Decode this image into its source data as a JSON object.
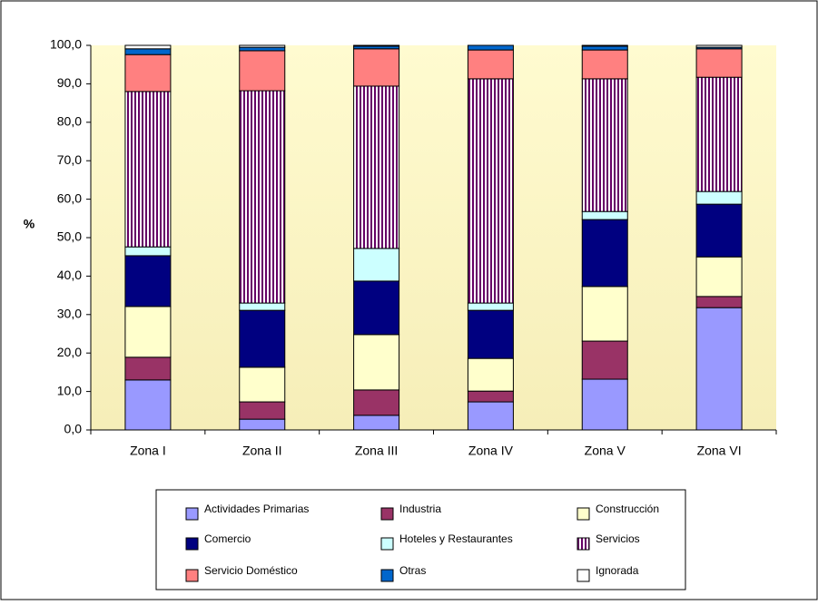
{
  "chart_data": {
    "type": "stacked-bar",
    "ylabel": "%",
    "categories": [
      "Zona I",
      "Zona II",
      "Zona III",
      "Zona IV",
      "Zona V",
      "Zona VI"
    ],
    "ylim": [
      0,
      100
    ],
    "yticks": [
      {
        "value": 0,
        "label": "0,0"
      },
      {
        "value": 10,
        "label": "10,0"
      },
      {
        "value": 20,
        "label": "20,0"
      },
      {
        "value": 30,
        "label": "30,0"
      },
      {
        "value": 40,
        "label": "40,0"
      },
      {
        "value": 50,
        "label": "50,0"
      },
      {
        "value": 60,
        "label": "60,0"
      },
      {
        "value": 70,
        "label": "70,0"
      },
      {
        "value": 80,
        "label": "80,0"
      },
      {
        "value": 90,
        "label": "90,0"
      },
      {
        "value": 100,
        "label": "100,0"
      }
    ],
    "legend_position": "bottom",
    "series": [
      {
        "name": "Actividades Primarias",
        "color": "#9999ff",
        "values": [
          13.0,
          2.8,
          3.8,
          7.3,
          13.2,
          31.8
        ]
      },
      {
        "name": "Industria",
        "color": "#993366",
        "values": [
          5.9,
          4.5,
          6.6,
          2.8,
          9.9,
          2.9
        ]
      },
      {
        "name": "Construcción",
        "color": "#ffffcc",
        "values": [
          13.2,
          9.0,
          14.4,
          8.5,
          14.2,
          10.3
        ]
      },
      {
        "name": "Comercio",
        "color": "#000080",
        "values": [
          13.2,
          14.8,
          13.9,
          12.5,
          17.4,
          13.7
        ]
      },
      {
        "name": "Hoteles y Restaurantes",
        "color": "#ccffff",
        "values": [
          2.3,
          1.9,
          8.5,
          1.9,
          2.1,
          3.3
        ]
      },
      {
        "name": "Servicios",
        "color": "#660066",
        "pattern": "vertical-stripes",
        "values": [
          40.4,
          55.2,
          42.2,
          58.3,
          34.5,
          29.7
        ]
      },
      {
        "name": "Servicio Doméstico",
        "color": "#ff8080",
        "values": [
          9.6,
          10.4,
          9.7,
          7.5,
          7.5,
          7.4
        ]
      },
      {
        "name": "Otras",
        "color": "#0066cc",
        "values": [
          1.5,
          0.9,
          0.7,
          1.2,
          1.0,
          0.4
        ]
      },
      {
        "name": "Ignorada",
        "color": "#ffffff",
        "values": [
          0.9,
          0.5,
          0.2,
          0.0,
          0.2,
          0.5
        ]
      }
    ]
  }
}
